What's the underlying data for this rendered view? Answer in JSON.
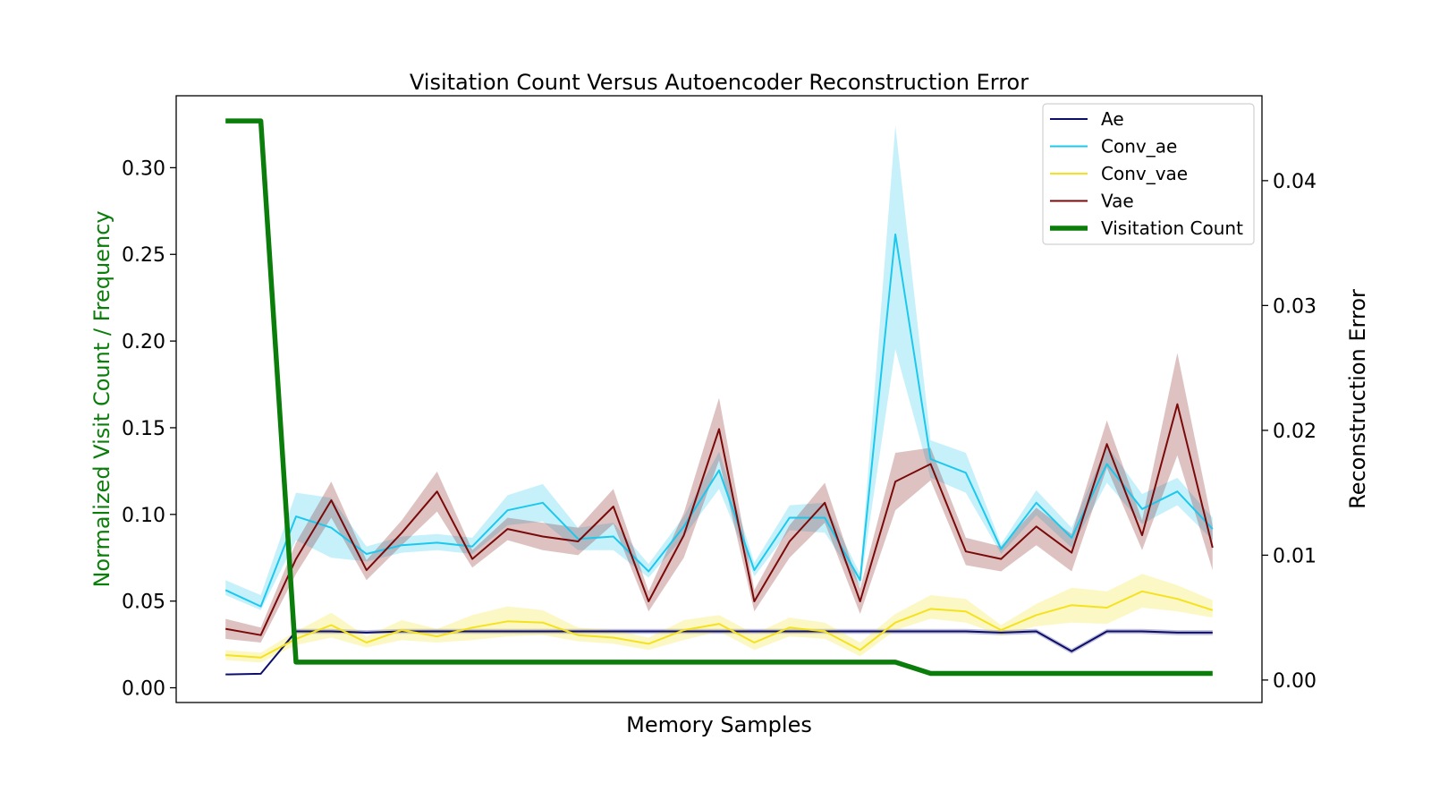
{
  "chart_data": {
    "type": "line",
    "title": "Visitation Count Versus Autoencoder Reconstruction Error",
    "xlabel": "Memory Samples",
    "ylabel_left": "Normalized Visit Count / Frequency",
    "ylabel_right": "Reconstruction Error",
    "ylim_left": [
      -0.0085,
      0.3415
    ],
    "ylim_right": [
      -0.0018,
      0.0468
    ],
    "yticks_left": [
      0.0,
      0.05,
      0.1,
      0.15,
      0.2,
      0.25,
      0.3
    ],
    "yticks_left_labels": [
      "0.00",
      "0.05",
      "0.10",
      "0.15",
      "0.20",
      "0.25",
      "0.30"
    ],
    "yticks_right": [
      0.0,
      0.01,
      0.02,
      0.03,
      0.04
    ],
    "yticks_right_labels": [
      "0.00",
      "0.01",
      "0.02",
      "0.03",
      "0.04"
    ],
    "x": [
      0,
      1,
      2,
      3,
      4,
      5,
      6,
      7,
      8,
      9,
      10,
      11,
      12,
      13,
      14,
      15,
      16,
      17,
      18,
      19,
      20,
      21,
      22,
      23,
      24,
      25,
      26,
      27,
      28
    ],
    "xlim": [
      -1.4,
      29.4
    ],
    "grid": false,
    "legend_position": "top-right",
    "colors": {
      "ae": "#0d0d6b",
      "conv_ae": "#1cc8ee",
      "conv_vae": "#f5e21c",
      "vae": "#7a0a0a",
      "visitation": "#0a7d0a",
      "left_axis_label": "#0a7d0a"
    },
    "series": [
      {
        "name": "Ae",
        "axis": "right",
        "color_key": "ae",
        "values": [
          0.00045,
          0.0005,
          0.0039,
          0.0039,
          0.0038,
          0.0039,
          0.0039,
          0.0039,
          0.0039,
          0.0039,
          0.0039,
          0.0039,
          0.0039,
          0.0039,
          0.0039,
          0.0039,
          0.0039,
          0.0039,
          0.0039,
          0.0039,
          0.0039,
          0.0039,
          0.0038,
          0.0039,
          0.0023,
          0.0039,
          0.0039,
          0.0038,
          0.0038
        ],
        "lower": [
          0.00045,
          0.0005,
          0.0037,
          0.0037,
          0.0037,
          0.0037,
          0.0037,
          0.0037,
          0.0037,
          0.0037,
          0.0037,
          0.0037,
          0.0037,
          0.0037,
          0.0037,
          0.0037,
          0.0037,
          0.0037,
          0.0037,
          0.0037,
          0.0037,
          0.0037,
          0.0036,
          0.0037,
          0.0021,
          0.0037,
          0.0037,
          0.0036,
          0.0036
        ],
        "upper": [
          0.00045,
          0.0005,
          0.0041,
          0.0041,
          0.004,
          0.0041,
          0.0041,
          0.0041,
          0.0041,
          0.0041,
          0.0041,
          0.0041,
          0.0041,
          0.0041,
          0.0041,
          0.0041,
          0.0041,
          0.0041,
          0.0041,
          0.0041,
          0.0041,
          0.0041,
          0.004,
          0.0041,
          0.0025,
          0.0041,
          0.0041,
          0.004,
          0.004
        ]
      },
      {
        "name": "Conv_ae",
        "axis": "right",
        "color_key": "conv_ae",
        "values": [
          0.0072,
          0.0059,
          0.0131,
          0.0122,
          0.0101,
          0.0108,
          0.011,
          0.0107,
          0.0136,
          0.0142,
          0.0113,
          0.0115,
          0.0087,
          0.0123,
          0.0168,
          0.0088,
          0.013,
          0.013,
          0.008,
          0.0357,
          0.0177,
          0.0166,
          0.0105,
          0.0142,
          0.0114,
          0.0173,
          0.0137,
          0.0151,
          0.0121
        ],
        "lower": [
          0.0068,
          0.0056,
          0.0112,
          0.0098,
          0.0095,
          0.0102,
          0.0104,
          0.0101,
          0.0124,
          0.0127,
          0.0104,
          0.0104,
          0.0082,
          0.0115,
          0.0153,
          0.0083,
          0.012,
          0.0118,
          0.0075,
          0.0265,
          0.0162,
          0.015,
          0.0101,
          0.0132,
          0.0106,
          0.0158,
          0.0125,
          0.014,
          0.0112
        ],
        "upper": [
          0.008,
          0.0068,
          0.015,
          0.0146,
          0.0107,
          0.0115,
          0.0117,
          0.0114,
          0.0148,
          0.0157,
          0.0122,
          0.0126,
          0.0093,
          0.0131,
          0.0183,
          0.0094,
          0.014,
          0.0142,
          0.0085,
          0.0444,
          0.0192,
          0.0182,
          0.0109,
          0.0152,
          0.0122,
          0.0188,
          0.0149,
          0.0162,
          0.013
        ]
      },
      {
        "name": "Conv_vae",
        "axis": "right",
        "color_key": "conv_vae",
        "values": [
          0.002,
          0.0018,
          0.0033,
          0.0044,
          0.003,
          0.004,
          0.0035,
          0.0042,
          0.0047,
          0.0046,
          0.0036,
          0.0034,
          0.0029,
          0.004,
          0.0045,
          0.003,
          0.0042,
          0.0039,
          0.0024,
          0.0046,
          0.0057,
          0.0055,
          0.004,
          0.0052,
          0.006,
          0.0058,
          0.0071,
          0.0065,
          0.0056
        ],
        "lower": [
          0.0016,
          0.0014,
          0.0028,
          0.0034,
          0.0026,
          0.0032,
          0.003,
          0.0032,
          0.0035,
          0.0036,
          0.0031,
          0.0029,
          0.0024,
          0.0032,
          0.0039,
          0.0024,
          0.0035,
          0.0033,
          0.0019,
          0.004,
          0.0049,
          0.0046,
          0.0036,
          0.0043,
          0.0046,
          0.0045,
          0.0058,
          0.0055,
          0.005
        ],
        "upper": [
          0.0024,
          0.0022,
          0.0039,
          0.0054,
          0.0035,
          0.0048,
          0.0041,
          0.0052,
          0.0059,
          0.0056,
          0.0042,
          0.004,
          0.0034,
          0.0048,
          0.0052,
          0.0037,
          0.005,
          0.0046,
          0.003,
          0.0053,
          0.0068,
          0.0065,
          0.0044,
          0.0061,
          0.0074,
          0.0071,
          0.0085,
          0.0076,
          0.0064
        ],
        "_note_excluded": false
      },
      {
        "name": "Vae",
        "axis": "right",
        "color_key": "vae",
        "values": [
          0.0041,
          0.0036,
          0.0097,
          0.0144,
          0.0088,
          0.0118,
          0.0151,
          0.0097,
          0.0121,
          0.0115,
          0.0111,
          0.0139,
          0.0063,
          0.0116,
          0.0201,
          0.0063,
          0.0111,
          0.0142,
          0.0063,
          0.0159,
          0.0173,
          0.0103,
          0.0097,
          0.0123,
          0.0102,
          0.0189,
          0.0116,
          0.0221,
          0.0106
        ],
        "lower": [
          0.0033,
          0.003,
          0.0085,
          0.013,
          0.008,
          0.0108,
          0.0135,
          0.009,
          0.0112,
          0.0104,
          0.01,
          0.0125,
          0.0055,
          0.0098,
          0.0176,
          0.0055,
          0.0098,
          0.0126,
          0.0053,
          0.0136,
          0.016,
          0.0092,
          0.0087,
          0.0108,
          0.0087,
          0.017,
          0.0104,
          0.018,
          0.0088
        ],
        "upper": [
          0.0049,
          0.0042,
          0.011,
          0.0159,
          0.0096,
          0.0128,
          0.0167,
          0.0104,
          0.013,
          0.0126,
          0.0122,
          0.0153,
          0.0071,
          0.0134,
          0.0226,
          0.0072,
          0.0124,
          0.0158,
          0.0073,
          0.0182,
          0.0186,
          0.0114,
          0.0107,
          0.0138,
          0.0117,
          0.0208,
          0.0128,
          0.0262,
          0.0124
        ]
      },
      {
        "name": "Visitation Count",
        "axis": "left",
        "color_key": "visitation",
        "values": [
          0.327,
          0.327,
          0.0148,
          0.0148,
          0.0148,
          0.0148,
          0.0148,
          0.0148,
          0.0148,
          0.0148,
          0.0148,
          0.0148,
          0.0148,
          0.0148,
          0.0148,
          0.0148,
          0.0148,
          0.0148,
          0.0148,
          0.0148,
          0.0083,
          0.0083,
          0.0083,
          0.0083,
          0.0083,
          0.0083,
          0.0083,
          0.0083,
          0.0083
        ]
      }
    ]
  }
}
